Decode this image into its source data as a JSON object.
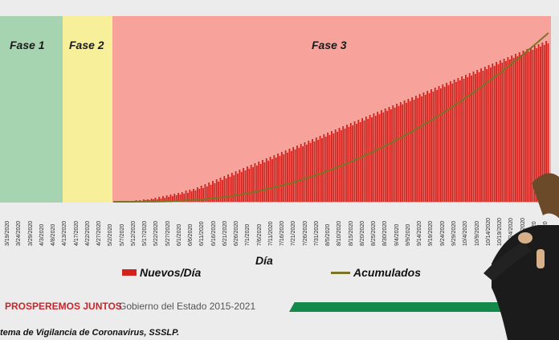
{
  "phases": [
    {
      "label": "Fase 1",
      "color": "#a6d4b1"
    },
    {
      "label": "Fase 2",
      "color": "#f7ef9a"
    },
    {
      "label": "Fase 3",
      "color": "#f7a39c"
    }
  ],
  "chart_data": {
    "type": "bar",
    "title": "",
    "xlabel": "Día",
    "ylabel": "",
    "grid": false,
    "legend_position": "bottom",
    "x_tick_labels": [
      "3/19/2020",
      "3/24/2020",
      "3/29/2020",
      "4/3/2020",
      "4/8/2020",
      "4/13/2020",
      "4/17/2020",
      "4/22/2020",
      "4/27/2020",
      "5/2/2020",
      "5/7/2020",
      "5/12/2020",
      "5/17/2020",
      "5/22/2020",
      "5/27/2020",
      "6/1/2020",
      "6/6/2020",
      "6/11/2020",
      "6/16/2020",
      "6/21/2020",
      "6/26/2020",
      "7/1/2020",
      "7/6/2020",
      "7/11/2020",
      "7/16/2020",
      "7/21/2020",
      "7/26/2020",
      "7/31/2020",
      "8/5/2020",
      "8/10/2020",
      "8/15/2020",
      "8/20/2020",
      "8/25/2020",
      "8/30/2020",
      "9/4/2020",
      "9/9/2020",
      "9/14/2020",
      "9/19/2020",
      "9/24/2020",
      "9/29/2020",
      "10/4/2020",
      "10/9/2020",
      "10/14/2020",
      "10/19/2020",
      "10/24/2020",
      "10/29/2020",
      "11/3/2020",
      "11/8/2020"
    ],
    "series": [
      {
        "name": "Nuevos/Día",
        "kind": "bar",
        "color": "#d4211c",
        "values": [
          0,
          0,
          0,
          0,
          0,
          0,
          1,
          0,
          1,
          0,
          1,
          1,
          2,
          1,
          2,
          1,
          3,
          2,
          3,
          2,
          4,
          3,
          5,
          3,
          6,
          4,
          7,
          5,
          8,
          6,
          9,
          7,
          10,
          8,
          11,
          9,
          12,
          10,
          14,
          11,
          15,
          13,
          16,
          14,
          18,
          16,
          20,
          17,
          22,
          19,
          24,
          21,
          26,
          23,
          28,
          25,
          30,
          27,
          32,
          29,
          34,
          31,
          36,
          33,
          38,
          35,
          40,
          37,
          42,
          39,
          44,
          41,
          46,
          43,
          48,
          45,
          50,
          47,
          52,
          49,
          54,
          51,
          56,
          53,
          58,
          55,
          60,
          57,
          62,
          59,
          64,
          61,
          66,
          63,
          68,
          65,
          70,
          67,
          72,
          69,
          74,
          71,
          76,
          73,
          78,
          75,
          80,
          77,
          82,
          79,
          84,
          81,
          86,
          83,
          88,
          85,
          90,
          87,
          92,
          89,
          94,
          91,
          96,
          93,
          98,
          95,
          100,
          97,
          102,
          99,
          104,
          101,
          106,
          103,
          108,
          105,
          110,
          107,
          112,
          109,
          114,
          111,
          116,
          113,
          118,
          115,
          120,
          117,
          122,
          119,
          124,
          121,
          126,
          123,
          128,
          125,
          130,
          127,
          132,
          129,
          134,
          131,
          136,
          133,
          138,
          135,
          140,
          137,
          142,
          139,
          144,
          141,
          146,
          143,
          148,
          145,
          150,
          147,
          152,
          149,
          154,
          151,
          156,
          153,
          158,
          155,
          160,
          157,
          162,
          159,
          164,
          161,
          166,
          163,
          168,
          165,
          170,
          167,
          172,
          169,
          174,
          171,
          176,
          173,
          178,
          175,
          180,
          177,
          182,
          179,
          184,
          181,
          186,
          183,
          188,
          185,
          190,
          187,
          192,
          189,
          194,
          191,
          196,
          193,
          198,
          195,
          200,
          197
        ]
      },
      {
        "name": "Acumulados",
        "kind": "line",
        "color": "#7b7426"
      }
    ]
  },
  "legend": {
    "bars": "Nuevos/Día",
    "line": "Acumulados"
  },
  "footer": {
    "slogan": "PROSPEREMOS JUNTOS",
    "government": "Gobierno del Estado 2015-2021",
    "source": "tema de Vigilancia de Coronavirus, SSSLP."
  },
  "colors": {
    "bar": "#d4211c",
    "line": "#7b7426",
    "accent_green": "#138a4a",
    "slogan_red": "#c8262c"
  }
}
